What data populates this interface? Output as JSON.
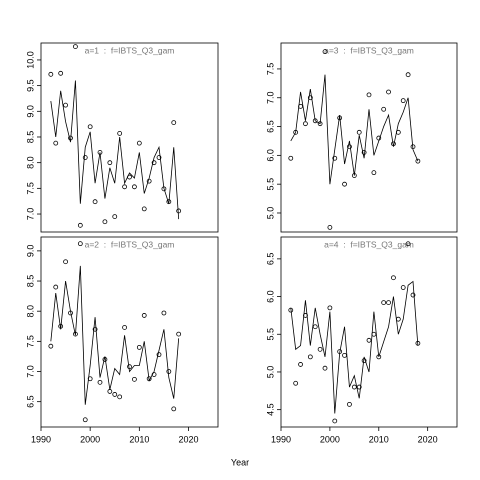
{
  "xlabel": "Year",
  "chart_data": [
    {
      "type": "line",
      "title": "a=1  :  f=IBTS_Q3_gam",
      "x": [
        1992,
        1993,
        1994,
        1995,
        1996,
        1997,
        1998,
        1999,
        2000,
        2001,
        2002,
        2003,
        2004,
        2005,
        2006,
        2007,
        2008,
        2009,
        2010,
        2011,
        2012,
        2013,
        2014,
        2015,
        2016,
        2017,
        2018
      ],
      "series": [
        {
          "style": "line",
          "color": "#000000",
          "values": [
            9.2,
            8.5,
            9.4,
            8.8,
            8.4,
            9.6,
            7.2,
            8.3,
            8.6,
            7.6,
            8.2,
            7.3,
            7.9,
            7.6,
            8.5,
            7.6,
            7.8,
            7.7,
            8.2,
            7.4,
            7.7,
            8.1,
            8.3,
            7.5,
            7.2,
            8.3,
            6.9
          ]
        },
        {
          "style": "points",
          "color": "#000000",
          "values": [
            9.72,
            8.38,
            9.74,
            9.12,
            8.48,
            10.26,
            6.78,
            8.1,
            8.7,
            7.24,
            8.2,
            6.85,
            8.0,
            6.95,
            8.57,
            7.53,
            7.72,
            7.53,
            8.38,
            7.1,
            7.64,
            8.0,
            8.1,
            7.49,
            7.24,
            8.78,
            7.06
          ]
        }
      ],
      "xlim": [
        1990,
        2026
      ],
      "ylim": [
        6.65,
        10.33
      ],
      "yticks": [
        {
          "value": 7,
          "label": "7.0"
        },
        7.5,
        {
          "value": 8,
          "label": "8.0"
        },
        8.5,
        {
          "value": 9,
          "label": "9.0"
        },
        9.5,
        {
          "value": 10,
          "label": "10.0"
        }
      ]
    },
    {
      "type": "line",
      "title": "a=3  :  f=IBTS_Q3_gam",
      "x": [
        1992,
        1993,
        1994,
        1995,
        1996,
        1997,
        1998,
        1999,
        2000,
        2001,
        2002,
        2003,
        2004,
        2005,
        2006,
        2007,
        2008,
        2009,
        2010,
        2011,
        2012,
        2013,
        2014,
        2015,
        2016,
        2017,
        2018
      ],
      "series": [
        {
          "style": "line",
          "color": "#000000",
          "values": [
            6.25,
            6.4,
            7.1,
            6.6,
            7.15,
            6.6,
            6.55,
            7.4,
            5.5,
            6.1,
            6.7,
            5.85,
            6.25,
            5.65,
            6.35,
            5.95,
            6.8,
            6.0,
            6.25,
            6.5,
            6.7,
            6.15,
            6.55,
            6.75,
            7.0,
            6.1,
            5.9
          ]
        },
        {
          "style": "points",
          "color": "#000000",
          "values": [
            5.95,
            6.4,
            6.85,
            6.55,
            7.0,
            6.6,
            6.55,
            7.8,
            4.75,
            5.95,
            6.65,
            5.5,
            6.15,
            5.65,
            6.4,
            6.05,
            7.05,
            5.7,
            6.3,
            6.8,
            7.1,
            6.2,
            6.4,
            6.95,
            7.4,
            6.15,
            5.9
          ]
        }
      ],
      "xlim": [
        1990,
        2026
      ],
      "ylim": [
        4.67,
        7.95
      ],
      "yticks": [
        {
          "value": 5,
          "label": "5.0"
        },
        5.5,
        {
          "value": 6,
          "label": "6.0"
        },
        6.5,
        {
          "value": 7,
          "label": "7.0"
        },
        7.5
      ]
    },
    {
      "type": "line",
      "title": "a=2  :  f=IBTS_Q3_gam",
      "x": [
        1992,
        1993,
        1994,
        1995,
        1996,
        1997,
        1998,
        1999,
        2000,
        2001,
        2002,
        2003,
        2004,
        2005,
        2006,
        2007,
        2008,
        2009,
        2010,
        2011,
        2012,
        2013,
        2014,
        2015,
        2016,
        2017,
        2018
      ],
      "series": [
        {
          "style": "line",
          "color": "#000000",
          "values": [
            7.5,
            8.3,
            7.7,
            8.5,
            8.0,
            7.6,
            8.75,
            6.45,
            7.1,
            7.9,
            6.9,
            7.25,
            6.7,
            7.05,
            6.95,
            7.6,
            7.0,
            7.1,
            7.1,
            7.5,
            6.85,
            7.0,
            7.35,
            7.7,
            6.9,
            6.55,
            7.55
          ]
        },
        {
          "style": "points",
          "color": "#000000",
          "values": [
            7.42,
            8.4,
            7.75,
            8.82,
            7.97,
            7.62,
            9.12,
            6.2,
            6.88,
            7.7,
            6.82,
            7.2,
            6.67,
            6.62,
            6.58,
            7.73,
            7.08,
            6.87,
            7.4,
            7.93,
            6.88,
            6.95,
            7.28,
            7.97,
            7.0,
            6.38,
            7.62
          ]
        }
      ],
      "xlim": [
        1990,
        2026
      ],
      "ylim": [
        6.08,
        9.23
      ],
      "xticks": [
        1990,
        2000,
        2010,
        2020
      ],
      "yticks": [
        6.5,
        {
          "value": 7,
          "label": "7.0"
        },
        7.5,
        {
          "value": 8,
          "label": "8.0"
        },
        8.5,
        {
          "value": 9,
          "label": "9.0"
        }
      ]
    },
    {
      "type": "line",
      "title": "a=4  :  f=IBTS_Q3_gam",
      "x": [
        1992,
        1993,
        1994,
        1995,
        1996,
        1997,
        1998,
        1999,
        2000,
        2001,
        2002,
        2003,
        2004,
        2005,
        2006,
        2007,
        2008,
        2009,
        2010,
        2011,
        2012,
        2013,
        2014,
        2015,
        2016,
        2017,
        2018
      ],
      "series": [
        {
          "style": "line",
          "color": "#000000",
          "values": [
            5.85,
            5.3,
            5.35,
            5.95,
            5.35,
            5.85,
            5.5,
            5.2,
            5.8,
            4.45,
            5.25,
            5.6,
            4.8,
            4.95,
            4.65,
            5.2,
            5.0,
            5.8,
            5.2,
            5.4,
            5.6,
            6.0,
            5.5,
            5.7,
            6.15,
            6.2,
            5.35
          ]
        },
        {
          "style": "points",
          "color": "#000000",
          "values": [
            5.82,
            4.85,
            5.1,
            5.75,
            5.2,
            5.6,
            5.3,
            5.05,
            5.85,
            4.35,
            5.27,
            5.22,
            4.57,
            4.8,
            4.8,
            5.15,
            5.42,
            5.5,
            5.2,
            5.92,
            5.92,
            6.25,
            5.7,
            6.12,
            6.7,
            6.02,
            5.38
          ]
        }
      ],
      "xlim": [
        1990,
        2026
      ],
      "ylim": [
        4.27,
        6.79
      ],
      "xticks": [
        1990,
        2000,
        2010,
        2020
      ],
      "yticks": [
        4.5,
        {
          "value": 5,
          "label": "5.0"
        },
        5.5,
        {
          "value": 6,
          "label": "6.0"
        },
        6.5
      ]
    }
  ]
}
